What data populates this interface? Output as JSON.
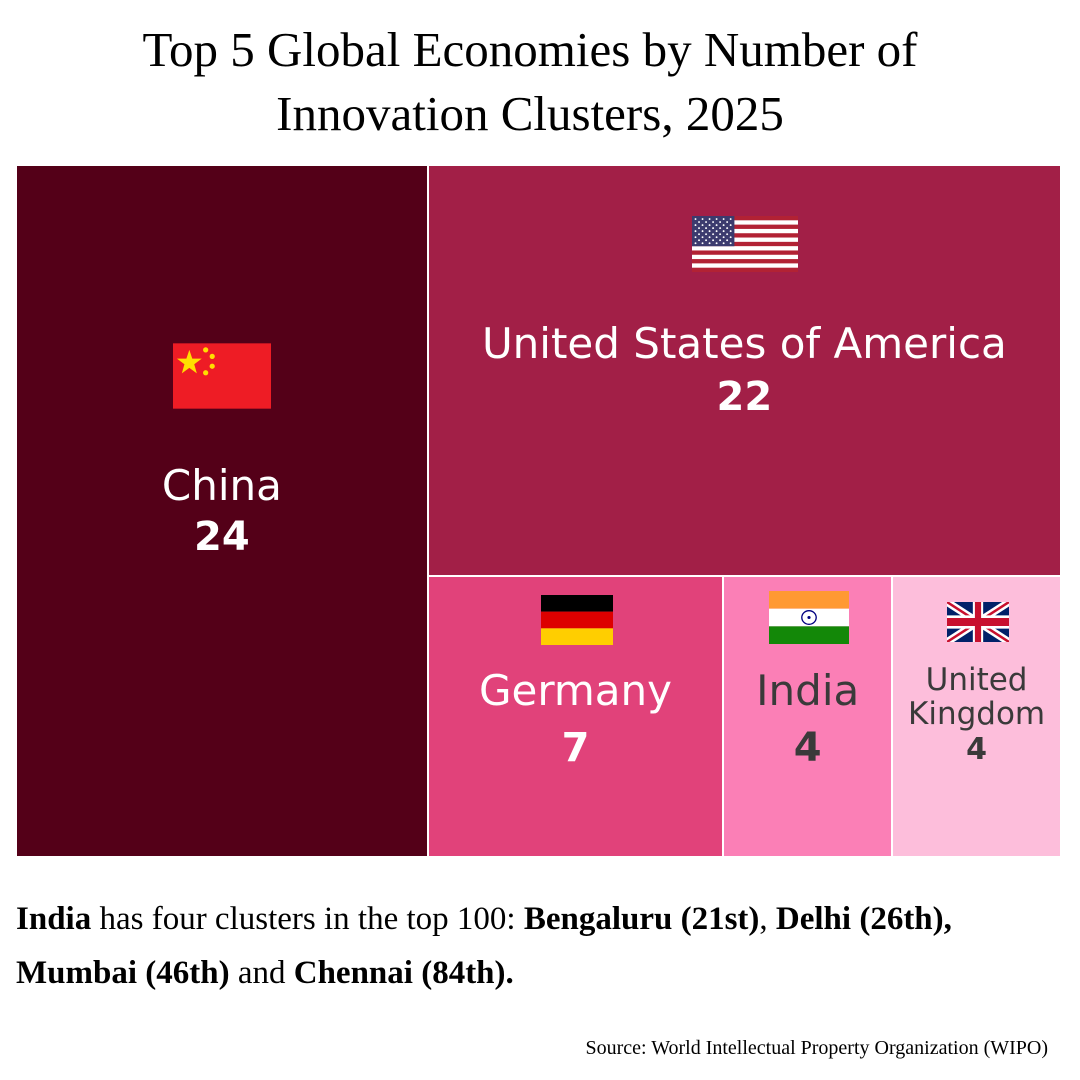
{
  "chart_data": {
    "type": "treemap",
    "title_lines": [
      "Top 5 Global Economies by Number of",
      "Innovation Clusters, 2025"
    ],
    "unit": "innovation clusters",
    "items": [
      {
        "name": "China",
        "value": 24,
        "value_label": "24",
        "color": "#540018",
        "text_color": "#ffffff",
        "flag": "china-flag-icon"
      },
      {
        "name": "United States of America",
        "value": 22,
        "value_label": "22",
        "color": "#a21f47",
        "text_color": "#ffffff",
        "flag": "usa-flag-icon"
      },
      {
        "name": "Germany",
        "value": 7,
        "value_label": "7",
        "color": "#e1427a",
        "text_color": "#ffffff",
        "flag": "germany-flag-icon"
      },
      {
        "name": "India",
        "value": 4,
        "value_label": "4",
        "color": "#fb7fb6",
        "text_color": "#3a3a3a",
        "flag": "india-flag-icon"
      },
      {
        "name_lines": [
          "United",
          "Kingdom"
        ],
        "name": "United Kingdom",
        "value": 4,
        "value_label": "4",
        "color": "#fdbedb",
        "text_color": "#3a3a3a",
        "flag": "uk-flag-icon"
      }
    ]
  },
  "caption": {
    "part1": "India",
    "part2": " has four clusters in the top 100: ",
    "part3": "Bengaluru (21st)",
    "part4": ", ",
    "part5": "Delhi (26th), Mumbai (46th)",
    "part6": " and ",
    "part7": "Chennai (84th)."
  },
  "source": "Source: World Intellectual Property Organization (WIPO)",
  "colors": {
    "china_red": "#ee1c25",
    "china_star": "#ffde00",
    "us_blue": "#3c3b6e",
    "us_red": "#b22234",
    "de_black": "#000000",
    "de_red": "#dd0000",
    "de_gold": "#ffce00",
    "in_saffron": "#ff9933",
    "in_green": "#138808",
    "in_chakra": "#000080",
    "uk_blue": "#012169",
    "uk_red": "#c8102e"
  }
}
